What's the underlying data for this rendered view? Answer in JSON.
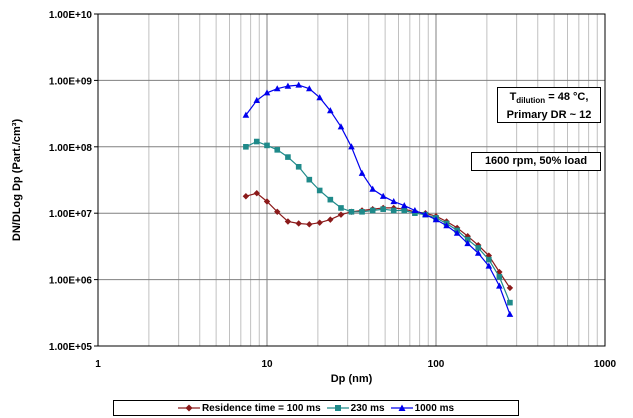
{
  "chart_data": {
    "type": "line",
    "xlabel": "Dp (nm)",
    "ylabel": "DN/DLog Dp (Part./cm³)",
    "x_scale": "log",
    "y_scale": "log",
    "xlim": [
      1,
      1000
    ],
    "ylim": [
      100000,
      10000000000
    ],
    "x_ticks": [
      "1",
      "10",
      "100",
      "1000"
    ],
    "y_ticks": [
      "1.00E+05",
      "1.00E+06",
      "1.00E+07",
      "1.00E+08",
      "1.00E+09",
      "1.00E+10"
    ],
    "grid": "vertical-minor-and-major, horizontal-major",
    "legend_position": "bottom",
    "annotations": [
      {
        "line1_main": "T",
        "line1_sub": "dilution",
        "line1_rest": " = 48 °C,",
        "line2": "Primary DR ~ 12"
      },
      {
        "text": "1600 rpm, 50% load"
      }
    ],
    "series": [
      {
        "name": "Residence time = 100 ms",
        "color": "#8B1A1A",
        "marker": "diamond",
        "x": [
          7.5,
          8.7,
          10.0,
          11.5,
          13.3,
          15.4,
          17.8,
          20.5,
          23.7,
          27.4,
          31.6,
          36.5,
          42.2,
          48.7,
          56.2,
          64.9,
          75.0,
          86.6,
          100.0,
          115.5,
          133.4,
          154.0,
          177.8,
          205.4,
          237.1,
          273.8
        ],
        "y": [
          18000000.0,
          20000000.0,
          15000000.0,
          10500000.0,
          7500000.0,
          7000000.0,
          6800000.0,
          7200000.0,
          8000000.0,
          9500000.0,
          10500000.0,
          11000000.0,
          11500000.0,
          12000000.0,
          12000000.0,
          11500000.0,
          10500000.0,
          10000000.0,
          9000000.0,
          7500000.0,
          6000000.0,
          4500000.0,
          3300000.0,
          2300000.0,
          1300000.0,
          750000.0
        ]
      },
      {
        "name": "230 ms",
        "color": "#1F8A8A",
        "marker": "square",
        "x": [
          7.5,
          8.7,
          10.0,
          11.5,
          13.3,
          15.4,
          17.8,
          20.5,
          23.7,
          27.4,
          31.6,
          36.5,
          42.2,
          48.7,
          56.2,
          64.9,
          75.0,
          86.6,
          100.0,
          115.5,
          133.4,
          154.0,
          177.8,
          205.4,
          237.1,
          273.8
        ],
        "y": [
          100000000.0,
          120000000.0,
          105000000.0,
          90000000.0,
          70000000.0,
          50000000.0,
          32000000.0,
          22000000.0,
          16000000.0,
          12000000.0,
          10500000.0,
          10500000.0,
          11000000.0,
          11500000.0,
          11000000.0,
          11000000.0,
          10000000.0,
          9500000.0,
          8500000.0,
          7000000.0,
          5500000.0,
          4000000.0,
          3000000.0,
          2000000.0,
          1100000.0,
          450000.0
        ]
      },
      {
        "name": "1000 ms",
        "color": "#0000EE",
        "marker": "triangle",
        "x": [
          7.5,
          8.7,
          10.0,
          11.5,
          13.3,
          15.4,
          17.8,
          20.5,
          23.7,
          27.4,
          31.6,
          36.5,
          42.2,
          48.7,
          56.2,
          64.9,
          75.0,
          86.6,
          100.0,
          115.5,
          133.4,
          154.0,
          177.8,
          205.4,
          237.1,
          273.8
        ],
        "y": [
          300000000.0,
          500000000.0,
          650000000.0,
          750000000.0,
          820000000.0,
          850000000.0,
          750000000.0,
          550000000.0,
          350000000.0,
          200000000.0,
          100000000.0,
          40000000.0,
          23000000.0,
          18000000.0,
          15000000.0,
          13000000.0,
          11000000.0,
          9500000.0,
          8000000.0,
          6500000.0,
          5000000.0,
          3500000.0,
          2500000.0,
          1600000.0,
          800000.0,
          300000.0
        ]
      }
    ]
  }
}
